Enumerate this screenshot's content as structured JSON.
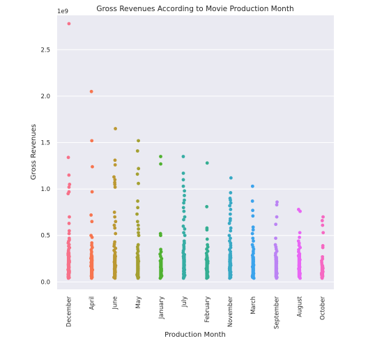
{
  "chart_data": {
    "type": "scatter",
    "title": "Gross Revenues According to Movie Production Month",
    "xlabel": "Production Month",
    "ylabel": "Gross Revenues",
    "y_offset_label": "1e9",
    "ylim": [
      -0.08,
      2.87
    ],
    "yticks": [
      0.0,
      0.5,
      1.0,
      1.5,
      2.0,
      2.5
    ],
    "ytick_labels": [
      "0.0",
      "0.5",
      "1.0",
      "1.5",
      "2.0",
      "2.5"
    ],
    "grid": true,
    "categories": [
      "December",
      "April",
      "June",
      "May",
      "January",
      "July",
      "February",
      "November",
      "March",
      "September",
      "August",
      "October"
    ],
    "colors": [
      "#f77189",
      "#f7754f",
      "#bb9832",
      "#a4a031",
      "#50b131",
      "#36ada4",
      "#34ae92",
      "#38a9c5",
      "#3ba3ec",
      "#bb83f4",
      "#e866f4",
      "#f668c2"
    ],
    "outliers": [
      [
        2.78,
        1.34,
        1.15,
        1.05,
        1.02,
        0.97,
        0.95,
        0.7,
        0.63,
        0.55,
        0.52
      ],
      [
        2.05,
        1.52,
        1.24,
        0.97,
        0.72,
        0.65,
        0.5,
        0.48
      ],
      [
        1.65,
        1.31,
        1.26,
        1.13,
        1.1,
        1.07,
        1.05,
        1.02,
        0.75,
        0.7,
        0.65,
        0.61,
        0.58,
        0.52
      ],
      [
        1.52,
        1.41,
        1.22,
        1.16,
        1.06,
        0.87,
        0.8,
        0.73,
        0.65,
        0.61,
        0.57,
        0.53,
        0.5
      ],
      [
        1.35,
        1.27,
        0.52,
        0.5
      ],
      [
        1.35,
        1.17,
        1.1,
        1.03,
        0.98,
        0.93,
        0.88,
        0.85,
        0.8,
        0.76,
        0.7,
        0.67,
        0.6,
        0.57,
        0.53,
        0.5
      ],
      [
        1.28,
        0.81,
        0.58,
        0.56,
        0.46
      ],
      [
        1.12,
        0.96,
        0.9,
        0.88,
        0.85,
        0.82,
        0.78,
        0.73,
        0.68,
        0.66,
        0.63,
        0.58,
        0.55,
        0.5,
        0.47
      ],
      [
        1.03,
        0.87,
        0.77,
        0.71,
        0.59,
        0.56,
        0.52,
        0.47,
        0.44
      ],
      [
        0.86,
        0.83,
        0.7,
        0.62,
        0.47
      ],
      [
        0.78,
        0.76,
        0.53,
        0.48
      ],
      [
        0.7,
        0.66,
        0.61,
        0.53,
        0.39,
        0.37
      ]
    ],
    "dense_max": [
      0.47,
      0.42,
      0.43,
      0.4,
      0.35,
      0.44,
      0.4,
      0.44,
      0.4,
      0.4,
      0.44,
      0.27
    ],
    "dense_count": [
      32,
      20,
      22,
      20,
      16,
      24,
      20,
      22,
      20,
      20,
      22,
      14
    ]
  }
}
